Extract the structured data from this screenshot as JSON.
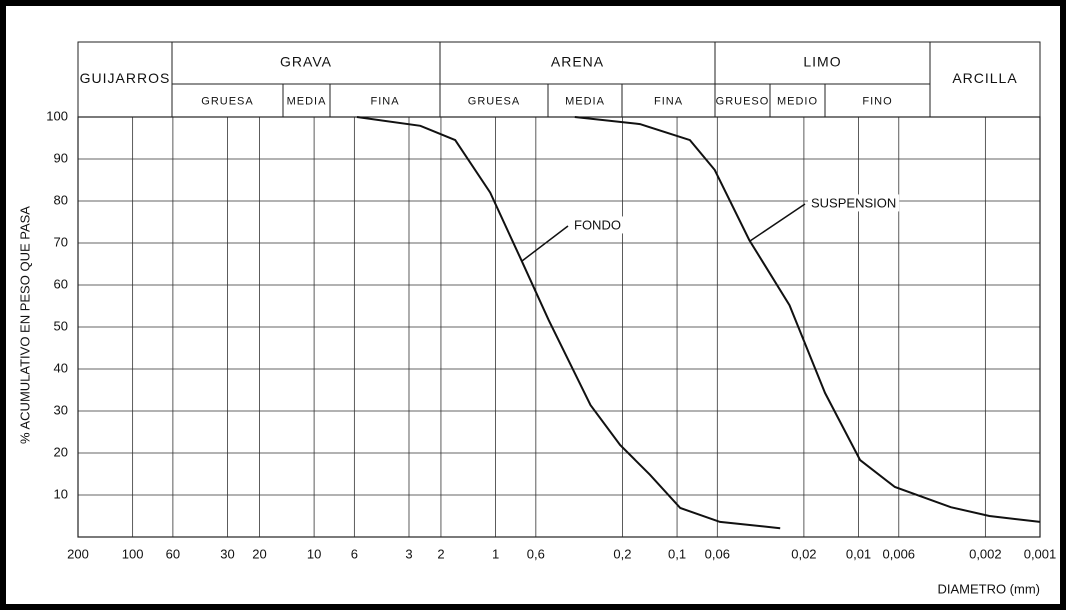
{
  "chart_data": {
    "type": "line",
    "y_label": "% ACUMULATIVO EN PESO QUE PASA",
    "x_label": "DIAMETRO (mm)",
    "log_x": true,
    "grid": true,
    "xlim": [
      200,
      0.001
    ],
    "ylim": [
      0,
      100
    ],
    "xticks": [
      200,
      100,
      60,
      30,
      20,
      10,
      6,
      3,
      2,
      1,
      {
        "value": 0.6,
        "label": "0,6"
      },
      {
        "value": 0.2,
        "label": "0,2"
      },
      {
        "value": 0.1,
        "label": "0,1"
      },
      {
        "value": 0.06,
        "label": "0,06"
      },
      {
        "value": 0.02,
        "label": "0,02"
      },
      {
        "value": 0.01,
        "label": "0,01"
      },
      {
        "value": 0.006,
        "label": "0,006"
      },
      {
        "value": 0.002,
        "label": "0,002"
      },
      {
        "value": 0.001,
        "label": "0,001"
      }
    ],
    "yticks": [
      10,
      20,
      30,
      40,
      50,
      60,
      70,
      80,
      90,
      100
    ],
    "soil_classes": [
      {
        "name": "GUIJARROS",
        "sub": []
      },
      {
        "name": "GRAVA",
        "sub": [
          "GRUESA",
          "MEDIA",
          "FINA"
        ]
      },
      {
        "name": "ARENA",
        "sub": [
          "GRUESA",
          "MEDIA",
          "FINA"
        ]
      },
      {
        "name": "LIMO",
        "sub": [
          "GRUESO",
          "MEDIO",
          "FINO"
        ]
      },
      {
        "name": "ARCILLA",
        "sub": []
      }
    ],
    "series": [
      {
        "name": "FONDO",
        "color": "#111111",
        "x": [
          5.8,
          2.6,
          1.67,
          1.07,
          0.73,
          0.51,
          0.3,
          0.206,
          0.141,
          0.096,
          0.058,
          0.027
        ],
        "values": [
          100,
          97.9,
          94.5,
          82,
          66.4,
          51.7,
          31.4,
          21.9,
          14.8,
          6.9,
          3.6,
          2.1
        ]
      },
      {
        "name": "SUSPENSION",
        "color": "#111111",
        "x": [
          0.366,
          0.16,
          0.085,
          0.062,
          0.04,
          0.024,
          0.0153,
          0.0098,
          0.0063,
          0.0031,
          0.0019,
          0.001
        ],
        "values": [
          100,
          98.3,
          94.5,
          87.4,
          70.7,
          55.2,
          34.3,
          18.3,
          11.9,
          7.1,
          5.0,
          3.6
        ]
      }
    ]
  }
}
